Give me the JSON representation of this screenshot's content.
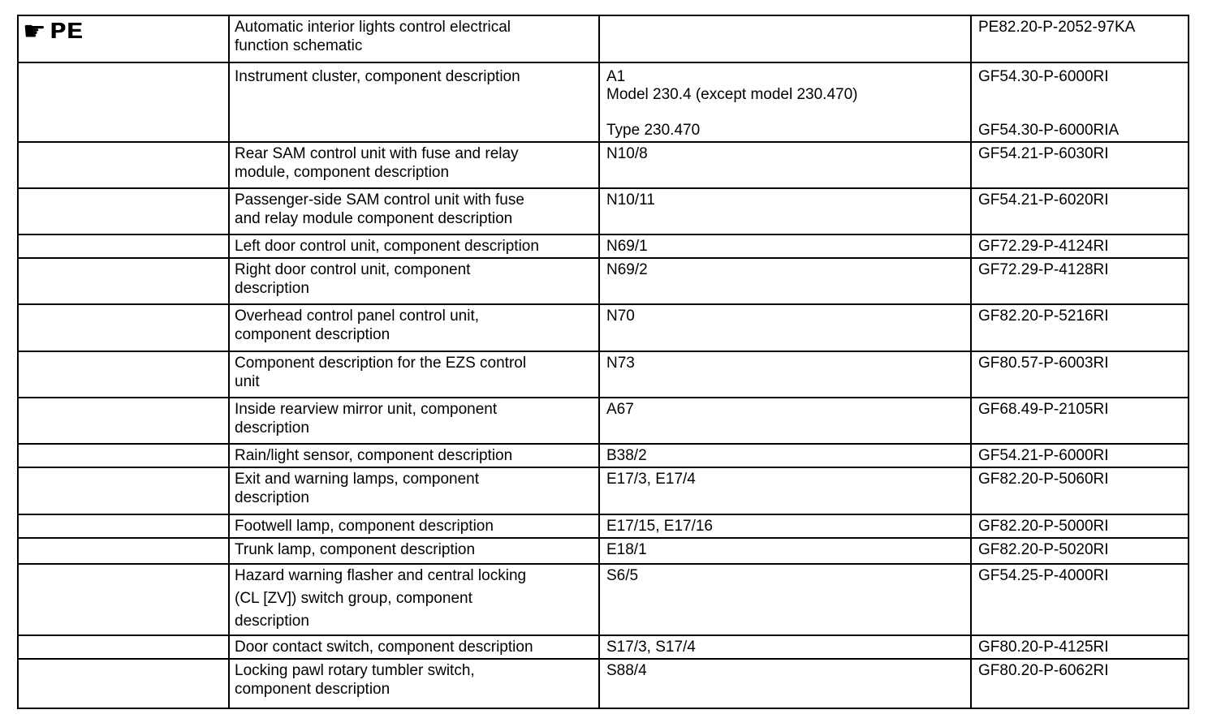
{
  "colors": {
    "background": "#ffffff",
    "text": "#000000",
    "border": "#000000"
  },
  "pe_link": {
    "icon": "pointing-hand-icon",
    "icon_glyph": "☛",
    "label": "PE"
  },
  "table": {
    "rows": [
      {
        "description": [
          "Automatic interior lights control electrical",
          "function schematic"
        ],
        "component_code": [],
        "document_code": [
          "PE82.20-P-2052-97KA"
        ]
      },
      {
        "description": [
          "Instrument cluster, component description"
        ],
        "component_code": [
          "A1",
          "Model 230.4 (except model 230.470)",
          "",
          "Type 230.470"
        ],
        "document_code": [
          "GF54.30-P-6000RI",
          "",
          "",
          "GF54.30-P-6000RIA"
        ]
      },
      {
        "description": [
          "Rear SAM control unit with fuse and relay",
          "module, component description"
        ],
        "component_code": [
          "N10/8"
        ],
        "document_code": [
          "GF54.21-P-6030RI"
        ]
      },
      {
        "description": [
          "Passenger-side SAM control unit with fuse",
          "and relay module component description"
        ],
        "component_code": [
          "N10/11"
        ],
        "document_code": [
          "GF54.21-P-6020RI"
        ]
      },
      {
        "description": [
          "Left door control unit, component description"
        ],
        "component_code": [
          "N69/1"
        ],
        "document_code": [
          "GF72.29-P-4124RI"
        ]
      },
      {
        "description": [
          "Right door control unit, component",
          "description"
        ],
        "component_code": [
          "N69/2"
        ],
        "document_code": [
          "GF72.29-P-4128RI"
        ]
      },
      {
        "description": [
          "Overhead control panel control unit,",
          "component description"
        ],
        "component_code": [
          "N70"
        ],
        "document_code": [
          "GF82.20-P-5216RI"
        ]
      },
      {
        "description": [
          "Component description for the EZS control",
          "unit"
        ],
        "component_code": [
          "N73"
        ],
        "document_code": [
          "GF80.57-P-6003RI"
        ]
      },
      {
        "description": [
          "Inside rearview mirror unit, component",
          "description"
        ],
        "component_code": [
          "A67"
        ],
        "document_code": [
          "GF68.49-P-2105RI"
        ]
      },
      {
        "description": [
          "Rain/light sensor, component description"
        ],
        "component_code": [
          "B38/2"
        ],
        "document_code": [
          "GF54.21-P-6000RI"
        ]
      },
      {
        "description": [
          "Exit and warning lamps, component",
          "description"
        ],
        "component_code": [
          "E17/3, E17/4"
        ],
        "document_code": [
          "GF82.20-P-5060RI"
        ]
      },
      {
        "description": [
          "Footwell lamp, component description"
        ],
        "component_code": [
          "E17/15, E17/16"
        ],
        "document_code": [
          "GF82.20-P-5000RI"
        ]
      },
      {
        "description": [
          "Trunk lamp, component description"
        ],
        "component_code": [
          "E18/1"
        ],
        "document_code": [
          "GF82.20-P-5020RI"
        ]
      },
      {
        "description": [
          "Hazard warning flasher and central locking",
          "(CL [ZV]) switch group, component",
          "description"
        ],
        "component_code": [
          "S6/5"
        ],
        "document_code": [
          "GF54.25-P-4000RI"
        ]
      },
      {
        "description": [
          "Door contact switch, component description"
        ],
        "component_code": [
          "S17/3, S17/4"
        ],
        "document_code": [
          "GF80.20-P-4125RI"
        ]
      },
      {
        "description": [
          "Locking pawl rotary tumbler switch,",
          "component description"
        ],
        "component_code": [
          "S88/4"
        ],
        "document_code": [
          "GF80.20-P-6062RI"
        ]
      }
    ]
  }
}
